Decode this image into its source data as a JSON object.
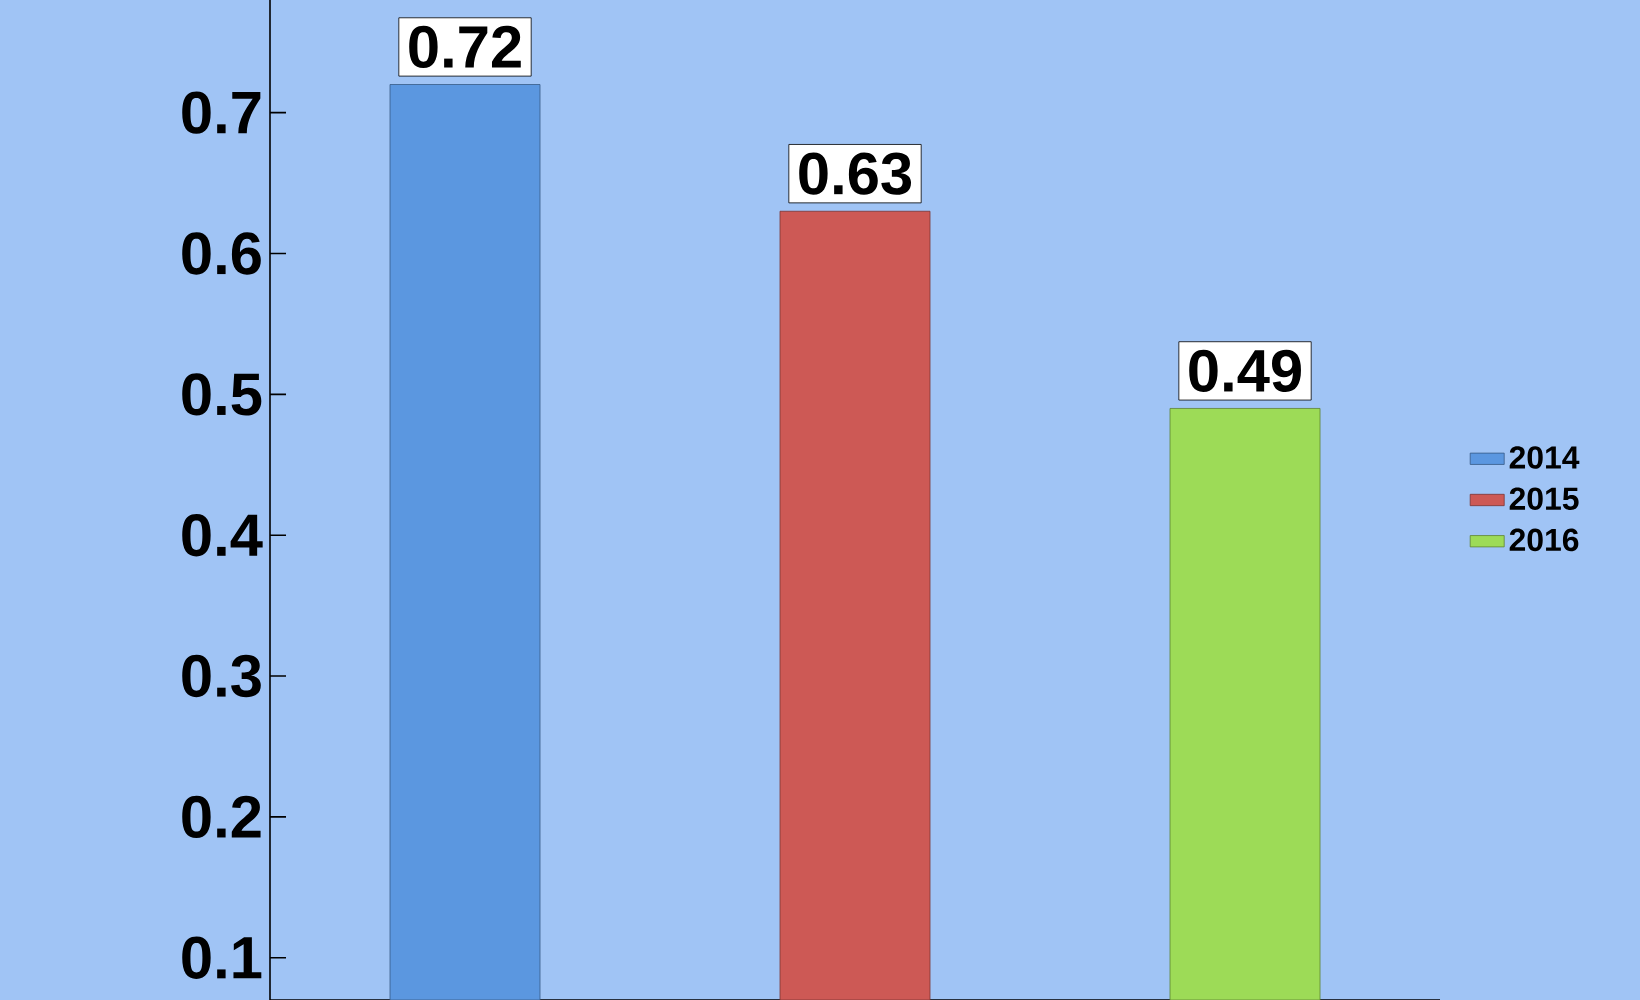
{
  "chart_data": {
    "type": "bar",
    "categories": [
      null,
      null,
      null
    ],
    "series": [
      {
        "name": "2014",
        "color": "#5b97e0",
        "values": [
          0.72,
          null,
          null
        ]
      },
      {
        "name": "2015",
        "color": "#cd5955",
        "values": [
          null,
          0.63,
          null
        ]
      },
      {
        "name": "2016",
        "color": "#9ddb57",
        "values": [
          null,
          null,
          0.49
        ]
      }
    ],
    "ylim": [
      0.07,
      0.78
    ],
    "yticks": [
      0.1,
      0.2,
      0.3,
      0.4,
      0.5,
      0.6,
      0.7
    ],
    "data_labels": true,
    "legend": "right",
    "grid": false
  }
}
